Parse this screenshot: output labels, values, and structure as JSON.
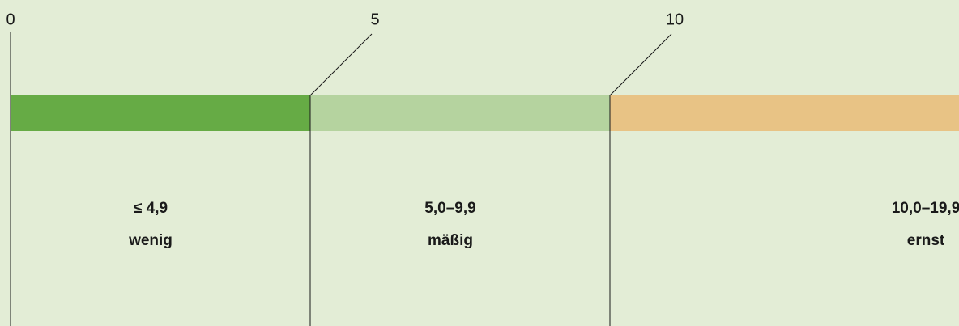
{
  "ticks": [
    "0",
    "5",
    "10"
  ],
  "segments": [
    {
      "range": "≤ 4,9",
      "label": "wenig",
      "color": "#66ab45"
    },
    {
      "range": "5,0–9,9",
      "label": "mäßig",
      "color": "#b5d39f"
    },
    {
      "range": "10,0–19,9",
      "label": "ernst",
      "color": "#e8c385"
    }
  ]
}
